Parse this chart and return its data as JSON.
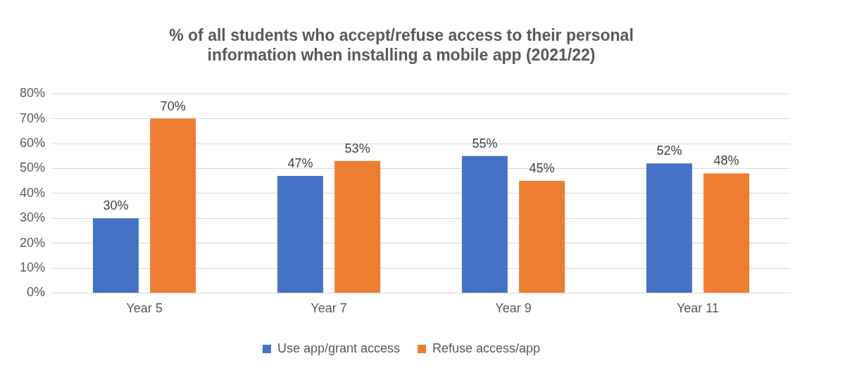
{
  "chart_data": {
    "type": "bar",
    "title": "% of all students who accept/refuse access to their personal information when installing a mobile app (2021/22)",
    "categories": [
      "Year 5",
      "Year 7",
      "Year 9",
      "Year 11"
    ],
    "series": [
      {
        "name": "Use app/grant access",
        "color": "#4472c4",
        "values": [
          30,
          47,
          55,
          52
        ],
        "value_labels": [
          "30%",
          "47%",
          "55%",
          "52%"
        ]
      },
      {
        "name": "Refuse access/app",
        "color": "#ed7d31",
        "values": [
          70,
          53,
          45,
          48
        ],
        "value_labels": [
          "70%",
          "53%",
          "45%",
          "48%"
        ]
      }
    ],
    "ylim": [
      0,
      80
    ],
    "yticks": [
      {
        "value": 0,
        "label": "0%"
      },
      {
        "value": 10,
        "label": "10%"
      },
      {
        "value": 20,
        "label": "20%"
      },
      {
        "value": 30,
        "label": "30%"
      },
      {
        "value": 40,
        "label": "40%"
      },
      {
        "value": 50,
        "label": "50%"
      },
      {
        "value": 60,
        "label": "60%"
      },
      {
        "value": 70,
        "label": "70%"
      },
      {
        "value": 80,
        "label": "80%"
      }
    ],
    "grid": "y",
    "legend": "bottom"
  }
}
